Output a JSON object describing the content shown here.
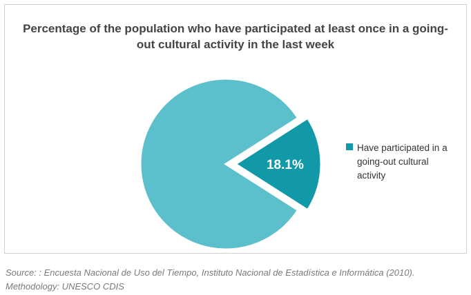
{
  "chart_data": {
    "type": "pie",
    "title": "Percentage of the population who have participated at least once in a going-out cultural activity in the last week",
    "slices": [
      {
        "label": "Have participated in a going-out cultural activity",
        "value": 18.1,
        "data_label": "18.1%",
        "exploded": true,
        "color": "#1199a8"
      },
      {
        "label": "",
        "value": 81.9,
        "data_label": "",
        "exploded": false,
        "color": "#5bc0cc"
      }
    ],
    "legend": {
      "position": "right",
      "entries": [
        {
          "label": "Have participated in a going-out cultural activity",
          "color": "#1199a8"
        }
      ]
    }
  },
  "source_text": "Source: : Encuesta Nacional de Uso del Tiempo, Instituto Nacional de Estadística e Informática (2010). Methodology: UNESCO CDIS"
}
